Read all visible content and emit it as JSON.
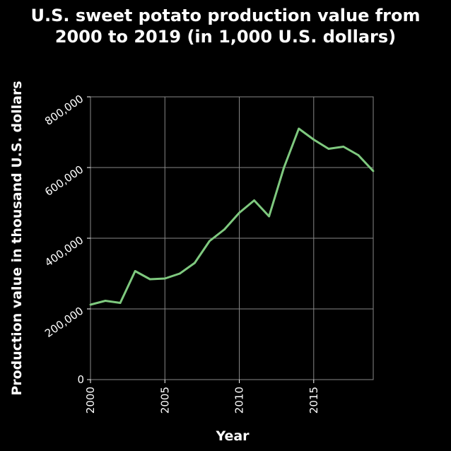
{
  "chart_data": {
    "type": "line",
    "title_lines": [
      "U.S. sweet potato production value from",
      "2000 to 2019 (in 1,000 U.S. dollars)"
    ],
    "xlabel": "Year",
    "ylabel": "Production value in thousand U.S. dollars",
    "xlim": [
      2000,
      2019
    ],
    "ylim": [
      0,
      800000
    ],
    "x_ticks": [
      2000,
      2005,
      2010,
      2015
    ],
    "x_tick_labels": [
      "2000",
      "2005",
      "2010",
      "2015"
    ],
    "y_ticks": [
      0,
      200000,
      400000,
      600000,
      800000
    ],
    "y_tick_labels": [
      "0",
      "200,000",
      "400,000",
      "600,000",
      "800,000"
    ],
    "grid": true,
    "series": [
      {
        "x": [
          2000,
          2001,
          2002,
          2003,
          2004,
          2005,
          2006,
          2007,
          2008,
          2009,
          2010,
          2011,
          2012,
          2013,
          2014,
          2015,
          2016,
          2017,
          2018,
          2019
        ],
        "values": [
          212000,
          223000,
          217000,
          307000,
          284000,
          286000,
          300000,
          330000,
          392000,
          425000,
          472000,
          507000,
          462000,
          600000,
          710000,
          679000,
          653000,
          659000,
          635000,
          590000
        ]
      }
    ],
    "colors": {
      "background": "#000000",
      "plot_background": "#000000",
      "grid": "#888888",
      "line": "#7fc97f",
      "text": "#ffffff"
    }
  }
}
